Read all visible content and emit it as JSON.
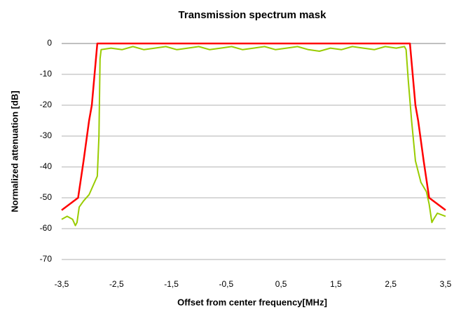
{
  "chart_data": {
    "type": "line",
    "title": "Transmission spectrum mask",
    "xlabel": "Offset from center frequency[MHz]",
    "ylabel": "Normalized attenuation [dB]",
    "xlim": [
      -3.5,
      3.5
    ],
    "xticks": [
      {
        "value": -3.5,
        "label": "-3,5"
      },
      {
        "value": -2.5,
        "label": "-2,5"
      },
      {
        "value": -1.5,
        "label": "-1,5"
      },
      {
        "value": -0.5,
        "label": "-0,5"
      },
      {
        "value": 0.5,
        "label": "0,5"
      },
      {
        "value": 1.5,
        "label": "1,5"
      },
      {
        "value": 2.5,
        "label": "2,5"
      },
      {
        "value": 3.5,
        "label": "3,5"
      }
    ],
    "ylim": [
      -70,
      0
    ],
    "yticks": [
      0,
      -10,
      -20,
      -30,
      -40,
      -50,
      -60,
      -70
    ],
    "grid": true,
    "series": [
      {
        "color": "#99cc00",
        "x": [
          -3.5,
          -3.4,
          -3.3,
          -3.25,
          -3.22,
          -3.18,
          -3.1,
          -3.0,
          -2.9,
          -2.85,
          -2.82,
          -2.8,
          -2.78,
          -2.6,
          -2.4,
          -2.2,
          -2.0,
          -1.8,
          -1.6,
          -1.4,
          -1.2,
          -1.0,
          -0.8,
          -0.6,
          -0.4,
          -0.2,
          0,
          0.2,
          0.4,
          0.6,
          0.8,
          1.0,
          1.2,
          1.4,
          1.6,
          1.8,
          2.0,
          2.2,
          2.4,
          2.6,
          2.75,
          2.78,
          2.82,
          2.88,
          2.95,
          3.05,
          3.15,
          3.2,
          3.25,
          3.28,
          3.35,
          3.5
        ],
        "values": [
          -57,
          -56,
          -57,
          -59,
          -58,
          -53,
          -51,
          -49,
          -45,
          -43,
          -30,
          -5,
          -2,
          -1.5,
          -2,
          -1,
          -2,
          -1.5,
          -1,
          -2,
          -1.5,
          -1,
          -2,
          -1.5,
          -1,
          -2,
          -1.5,
          -1,
          -2,
          -1.5,
          -1,
          -2,
          -2.5,
          -1.5,
          -2,
          -1,
          -1.5,
          -2,
          -1,
          -1.5,
          -1,
          -2,
          -12,
          -25,
          -38,
          -45,
          -48,
          -52,
          -58,
          -57,
          -55,
          -56
        ]
      },
      {
        "color": "#ff0000",
        "x": [
          -3.5,
          -3.2,
          -3.1,
          -3.0,
          -2.95,
          -2.85,
          2.85,
          2.95,
          3.0,
          3.1,
          3.2,
          3.5
        ],
        "values": [
          -54,
          -50,
          -38,
          -25,
          -20,
          0,
          0,
          -20,
          -25,
          -38,
          -50,
          -54
        ]
      }
    ]
  }
}
